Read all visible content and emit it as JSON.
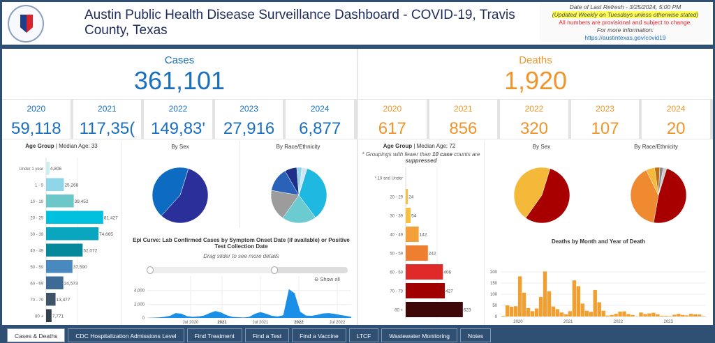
{
  "header": {
    "title": "Austin Public Health Disease Surveillance Dashboard - COVID-19, Travis County, Texas",
    "seal_text": "CITY OF AUSTIN",
    "refresh": "Date of Last Refresh - 3/25/2024, 5:00 PM",
    "updated": "(Updated  Weekly on Tuesdays unless otherwise stated)",
    "provisional": "All numbers are provisional and subject to change.",
    "more_info": "For more information:",
    "link": "https://austintexas.gov/covid19"
  },
  "cases": {
    "label": "Cases",
    "total": "361,101",
    "years": [
      {
        "year": "2020",
        "value": "59,118"
      },
      {
        "year": "2021",
        "value": "117,35("
      },
      {
        "year": "2022",
        "value": "149,83'"
      },
      {
        "year": "2023",
        "value": "27,916"
      },
      {
        "year": "2024",
        "value": "6,877"
      }
    ],
    "age_title": "Age Group",
    "age_median": " | Median Age: 33",
    "sex_title": "By Sex",
    "race_title": "By Race/Ethnicity",
    "epi_title": "Epi Curve: Lab Confirmed Cases by Symptom Onset Date (if available) or Positive Test Collection Date",
    "epi_sub": "Drag slider to see more details",
    "show_all": "Show all"
  },
  "deaths": {
    "label": "Deaths",
    "total": "1,920",
    "years": [
      {
        "year": "2020",
        "value": "617"
      },
      {
        "year": "2021",
        "value": "856"
      },
      {
        "year": "2022",
        "value": "320"
      },
      {
        "year": "2023",
        "value": "107"
      },
      {
        "year": "2024",
        "value": "20"
      }
    ],
    "age_title": "Age Group",
    "age_median": " | Median Age: 72",
    "note_a": "* Groupings with fewer than ",
    "note_b": "10 case",
    "note_c": " counts are ",
    "note_d": "suppressed",
    "sex_title": "By Sex",
    "race_title": "By Race/Ethnicity",
    "month_title": "Deaths by Month and Year of Death"
  },
  "chart_data": [
    {
      "type": "bar",
      "orientation": "horizontal",
      "categories": [
        "Under 1 year",
        "1 - 9",
        "10 - 19",
        "20 - 29",
        "30 - 39",
        "40 - 49",
        "50 - 59",
        "60 - 69",
        "70 - 79",
        "80 +"
      ],
      "values": [
        4806,
        25268,
        39452,
        81427,
        74665,
        52072,
        37590,
        24573,
        13477,
        7771
      ],
      "labels": [
        "4,806",
        "25,268",
        "39,452",
        "81,427",
        "74,665",
        "52,072",
        "37,590",
        "24,573",
        "13,477",
        "7,771"
      ],
      "colors": [
        "#c8eef0",
        "#8fd6e8",
        "#6cc8c8",
        "#00c0e0",
        "#0aa6c0",
        "#05899a",
        "#4a88c0",
        "#3e6a96",
        "#3f5468",
        "#34404c"
      ]
    },
    {
      "type": "pie",
      "values": [
        57,
        43
      ],
      "colors": [
        "#2b2f9a",
        "#0d6cc2"
      ]
    },
    {
      "type": "pie",
      "values": [
        35,
        20,
        18,
        14,
        7,
        3,
        3
      ],
      "colors": [
        "#1fb8e0",
        "#6bcbd0",
        "#9c9c9c",
        "#2a62b8",
        "#1e2f8a",
        "#8fd3ec",
        "#cfe7f2"
      ]
    },
    {
      "type": "area",
      "x_ticks": [
        "Jul 2020",
        "2021",
        "Jul 2021",
        "2022",
        "Jul 2022"
      ],
      "y_ticks": [
        "0",
        "2,000",
        "4,000"
      ],
      "ylim": [
        0,
        5500
      ],
      "values": [
        10,
        40,
        80,
        150,
        300,
        700,
        620,
        250,
        150,
        200,
        350,
        700,
        1000,
        800,
        400,
        150,
        100,
        60,
        150,
        600,
        850,
        600,
        300,
        200,
        400,
        4200,
        3600,
        900,
        350,
        300,
        450,
        650,
        700,
        600,
        450,
        300,
        150
      ],
      "color": "#1a8fe8"
    },
    {
      "type": "bar",
      "orientation": "horizontal",
      "categories": [
        "* 19 and Under",
        "20 - 29",
        "30 - 39",
        "40 - 49",
        "50 - 59",
        "60 - 69",
        "70 - 79",
        "80 +"
      ],
      "values": [
        0,
        24,
        54,
        142,
        242,
        406,
        427,
        623
      ],
      "labels": [
        "",
        "24",
        "54",
        "142",
        "242",
        "406",
        "427",
        "623"
      ],
      "colors": [
        "#fff",
        "#f8c040",
        "#f8c040",
        "#f4a03a",
        "#ee7f30",
        "#e02a2a",
        "#a00000",
        "#3e0808"
      ]
    },
    {
      "type": "pie",
      "values": [
        55,
        45
      ],
      "colors": [
        "#a80000",
        "#f5b93a"
      ]
    },
    {
      "type": "pie",
      "values": [
        48,
        40,
        5,
        3,
        2,
        2
      ],
      "colors": [
        "#a80000",
        "#f08a30",
        "#f5b93a",
        "#c07018",
        "#888",
        "#ccc"
      ]
    },
    {
      "type": "bar",
      "x_ticks": [
        "2020",
        "2021",
        "2022",
        "2023"
      ],
      "y_ticks": [
        "0",
        "50",
        "100",
        "150",
        "200"
      ],
      "ylim": [
        0,
        250
      ],
      "values": [
        3,
        50,
        44,
        46,
        180,
        107,
        38,
        24,
        36,
        88,
        202,
        113,
        45,
        33,
        18,
        10,
        24,
        162,
        136,
        58,
        26,
        21,
        119,
        64,
        26,
        4,
        7,
        12,
        22,
        23,
        11,
        7,
        1,
        18,
        11,
        14,
        17,
        10,
        3,
        3,
        2,
        8,
        12,
        7,
        5,
        12,
        10,
        9,
        2
      ],
      "color": "#f0a030"
    }
  ],
  "tabs": [
    "Cases & Deaths",
    "CDC Hospitalization Admissions Level",
    "Find Treatment",
    "Find a Test",
    "Find a Vaccine",
    "LTCF",
    "Wastewater Monitoring",
    "Notes"
  ]
}
